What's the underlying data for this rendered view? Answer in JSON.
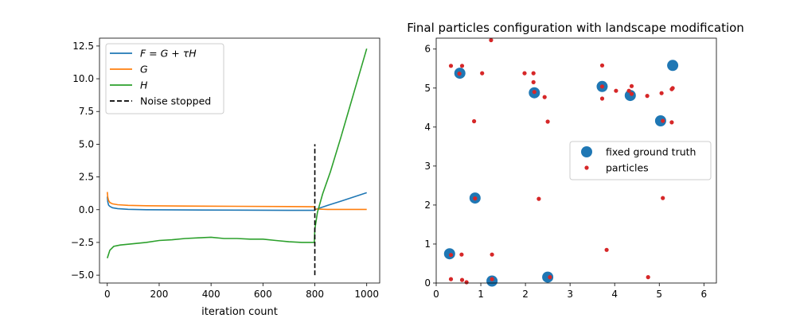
{
  "chart_data": [
    {
      "type": "line",
      "title": "",
      "xlabel": "iteration count",
      "ylabel": "",
      "xlim": [
        -30,
        1050
      ],
      "ylim": [
        -5.6,
        13.1
      ],
      "xticks": [
        0,
        200,
        400,
        600,
        800,
        1000
      ],
      "yticks": [
        -5.0,
        -2.5,
        0.0,
        2.5,
        5.0,
        7.5,
        10.0,
        12.5
      ],
      "xtick_labels": [
        "0",
        "200",
        "400",
        "600",
        "800",
        "1000"
      ],
      "ytick_labels": [
        "−5.0",
        "−2.5",
        "0.0",
        "2.5",
        "5.0",
        "7.5",
        "10.0",
        "12.5"
      ],
      "legend_position": "upper-left",
      "series": [
        {
          "name": "F = G + τH",
          "color": "#1f77b4",
          "x": [
            0,
            2,
            5,
            10,
            20,
            40,
            80,
            150,
            300,
            500,
            700,
            798,
            800,
            850,
            900,
            950,
            1000
          ],
          "y": [
            1.0,
            0.6,
            0.35,
            0.25,
            0.15,
            0.08,
            0.03,
            0.0,
            -0.02,
            -0.03,
            -0.05,
            -0.05,
            0.0,
            0.33,
            0.65,
            0.97,
            1.3
          ]
        },
        {
          "name": "G",
          "color": "#ff7f0e",
          "x": [
            0,
            2,
            5,
            10,
            20,
            40,
            80,
            150,
            300,
            500,
            700,
            798,
            800,
            850,
            900,
            950,
            1000
          ],
          "y": [
            1.35,
            0.95,
            0.7,
            0.55,
            0.45,
            0.38,
            0.33,
            0.3,
            0.28,
            0.26,
            0.24,
            0.22,
            0.05,
            0.02,
            0.02,
            0.02,
            0.02
          ]
        },
        {
          "name": "H",
          "color": "#2ca02c",
          "x": [
            0,
            10,
            25,
            50,
            100,
            150,
            200,
            250,
            300,
            350,
            400,
            450,
            500,
            550,
            600,
            650,
            700,
            750,
            798,
            800,
            810,
            830,
            860,
            900,
            950,
            1000
          ],
          "y": [
            -3.7,
            -3.1,
            -2.8,
            -2.7,
            -2.6,
            -2.5,
            -2.35,
            -2.3,
            -2.2,
            -2.15,
            -2.1,
            -2.2,
            -2.2,
            -2.25,
            -2.25,
            -2.35,
            -2.45,
            -2.5,
            -2.5,
            -1.5,
            -0.2,
            1.2,
            2.9,
            5.5,
            8.9,
            12.3
          ]
        }
      ],
      "annotations": [
        {
          "name": "Noise stopped",
          "style": "dashed",
          "color": "#000000",
          "x": 800,
          "y_range": [
            -5.0,
            5.0
          ]
        }
      ]
    },
    {
      "type": "scatter",
      "title": "Final particles configuration with landscape modification",
      "xlabel": "",
      "ylabel": "",
      "xlim": [
        0,
        6.28
      ],
      "ylim": [
        0,
        6.28
      ],
      "xticks": [
        0,
        1,
        2,
        3,
        4,
        5,
        6
      ],
      "yticks": [
        0,
        1,
        2,
        3,
        4,
        5,
        6
      ],
      "xtick_labels": [
        "0",
        "1",
        "2",
        "3",
        "4",
        "5",
        "6"
      ],
      "ytick_labels": [
        "0",
        "1",
        "2",
        "3",
        "4",
        "5",
        "6"
      ],
      "legend_position": "center-right",
      "series": [
        {
          "name": "fixed ground truth",
          "color": "#1f77b4",
          "marker": "large-circle",
          "points": [
            [
              0.53,
              5.38
            ],
            [
              2.2,
              4.88
            ],
            [
              3.72,
              5.04
            ],
            [
              4.35,
              4.81
            ],
            [
              5.3,
              5.58
            ],
            [
              5.03,
              4.16
            ],
            [
              0.87,
              2.18
            ],
            [
              0.3,
              0.75
            ],
            [
              1.25,
              0.05
            ],
            [
              2.5,
              0.15
            ]
          ]
        },
        {
          "name": "particles",
          "color": "#d62728",
          "marker": "small-dot",
          "points": [
            [
              0.33,
              5.57
            ],
            [
              0.58,
              5.57
            ],
            [
              0.52,
              5.37
            ],
            [
              1.03,
              5.38
            ],
            [
              1.23,
              6.23
            ],
            [
              1.98,
              5.38
            ],
            [
              2.18,
              5.38
            ],
            [
              2.18,
              5.15
            ],
            [
              2.2,
              4.9
            ],
            [
              2.43,
              4.77
            ],
            [
              2.5,
              4.14
            ],
            [
              3.72,
              5.58
            ],
            [
              3.72,
              5.04
            ],
            [
              3.72,
              4.73
            ],
            [
              4.03,
              4.93
            ],
            [
              4.32,
              4.93
            ],
            [
              4.38,
              5.05
            ],
            [
              4.38,
              4.85
            ],
            [
              4.73,
              4.8
            ],
            [
              5.05,
              4.87
            ],
            [
              5.28,
              4.97
            ],
            [
              5.3,
              5.0
            ],
            [
              5.28,
              4.12
            ],
            [
              5.08,
              4.16
            ],
            [
              0.85,
              4.15
            ],
            [
              0.87,
              2.17
            ],
            [
              2.3,
              2.16
            ],
            [
              5.08,
              2.18
            ],
            [
              3.82,
              0.85
            ],
            [
              0.33,
              0.72
            ],
            [
              0.57,
              0.73
            ],
            [
              1.25,
              0.73
            ],
            [
              0.33,
              0.1
            ],
            [
              0.58,
              0.08
            ],
            [
              0.68,
              0.02
            ],
            [
              1.25,
              0.1
            ],
            [
              2.55,
              0.15
            ],
            [
              4.75,
              0.15
            ]
          ]
        }
      ]
    }
  ]
}
